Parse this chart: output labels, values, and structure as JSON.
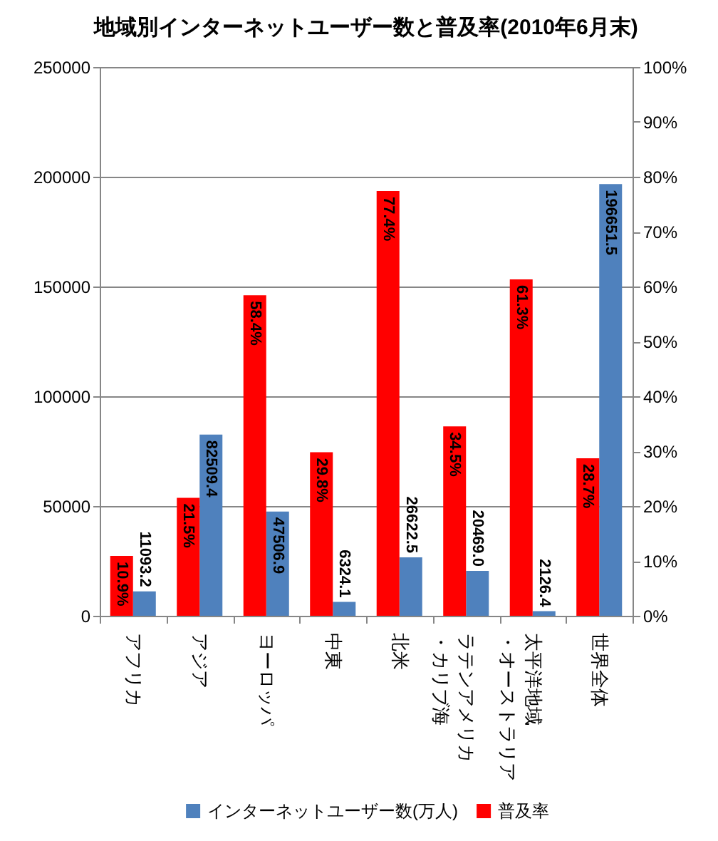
{
  "chart_data": {
    "type": "bar",
    "title": "地域別インターネットユーザー数と普及率(2010年6月末)",
    "categories": [
      "アフリカ",
      "アジア",
      "ヨーロッパ",
      "中東",
      "北米",
      "ラテンアメリカ・カリブ海",
      "太平洋地域・オーストラリア",
      "世界全体"
    ],
    "series": [
      {
        "name": "インターネットユーザー数(万人)",
        "color": "#4f81bd",
        "axis": "y",
        "values": [
          11093.2,
          82509.4,
          47506.9,
          6324.1,
          26622.5,
          20469.0,
          2126.4,
          196651.5
        ],
        "value_labels": [
          "11093.2",
          "82509.4",
          "47506.9",
          "6324.1",
          "26622.5",
          "20469.0",
          "2126.4",
          "196651.5"
        ]
      },
      {
        "name": "普及率",
        "color": "#ff0000",
        "axis": "y2",
        "values": [
          10.9,
          21.5,
          58.4,
          29.8,
          77.4,
          34.5,
          61.3,
          28.7
        ],
        "value_labels": [
          "10.9%",
          "21.5%",
          "58.4%",
          "29.8%",
          "77.4%",
          "34.5%",
          "61.3%",
          "28.7%"
        ]
      }
    ],
    "ylim": [
      0,
      250000
    ],
    "yticks": [
      0,
      50000,
      100000,
      150000,
      200000,
      250000
    ],
    "y2lim": [
      0,
      100
    ],
    "y2ticks": [
      {
        "value": 0,
        "label": "0%"
      },
      {
        "value": 10,
        "label": "10%"
      },
      {
        "value": 20,
        "label": "20%"
      },
      {
        "value": 30,
        "label": "30%"
      },
      {
        "value": 40,
        "label": "40%"
      },
      {
        "value": 50,
        "label": "50%"
      },
      {
        "value": 60,
        "label": "60%"
      },
      {
        "value": 70,
        "label": "70%"
      },
      {
        "value": 80,
        "label": "80%"
      },
      {
        "value": 90,
        "label": "90%"
      },
      {
        "value": 100,
        "label": "100%"
      }
    ],
    "grid": "y",
    "legend": "bottom"
  }
}
